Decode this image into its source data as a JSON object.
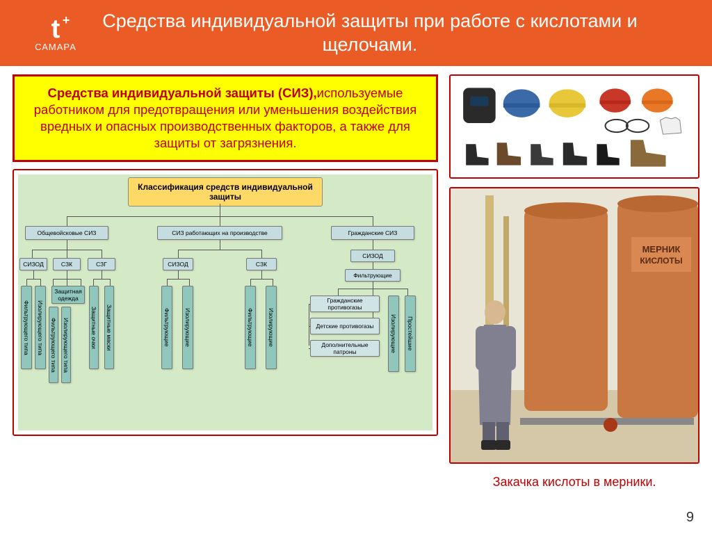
{
  "colors": {
    "header_bg": "#ea5b25",
    "siz_bg": "#ffff00",
    "siz_border": "#c00000",
    "siz_text": "#c00000",
    "chart_border": "#c00000",
    "chart_bg": "#d4e9c6",
    "chart_title_bg": "#ffd966",
    "node_bg": "#c5dde0",
    "node_accent": "#8fc7bd",
    "node_list": "#d0e4e6",
    "ppe_border": "#c00000",
    "photo_border": "#c00000",
    "caption_color": "#c00000",
    "photo_wall": "#e8e4d6",
    "photo_floor": "#d4c8a8",
    "tank_color": "#c87840",
    "tank_dark": "#a85820",
    "worker_apron": "#808090",
    "worker_sleeve": "#d8d0b0"
  },
  "logo": {
    "t": "t",
    "plus": "+",
    "sub": "САМАРА"
  },
  "title": "Средства индивидуальной защиты при работе с  кислотами и щелочами.",
  "siz_box": {
    "term": "Средства индивидуальной защиты (СИЗ),",
    "rest": "используемые работником для предотвращения или уменьшения воздействия вредных и опасных производственных факторов, а также для защиты от загрязнения."
  },
  "chart": {
    "title": "Классификация средств индивидуальной защиты",
    "level1": [
      "Общевойсковые СИЗ",
      "СИЗ работающих на производстве",
      "Гражданские СИЗ"
    ],
    "g1": {
      "sub": [
        "СИЗОД",
        "СЗК",
        "СЗГ"
      ],
      "leaf_a": [
        "Фильтрующего типа",
        "Изолирующего типа"
      ],
      "leaf_b": [
        "Фильтрующего типа",
        "Изолирующего типа",
        "Защитная одежда"
      ],
      "leaf_c": [
        "Защитные очки",
        "Защитные маски"
      ]
    },
    "g2": {
      "sub": [
        "СИЗОД",
        "СЗК"
      ],
      "leaf_a": [
        "Фильтрующие",
        "Изолирующие"
      ],
      "leaf_b": [
        "Фильтрующие",
        "Изолирующие"
      ]
    },
    "g3": {
      "sub": [
        "СИЗОД"
      ],
      "filt": "Фильтрующие",
      "items": [
        "Гражданские противогазы",
        "Детские противогазы",
        "Дополнительные патроны"
      ],
      "side": [
        "Изолирующие",
        "Простейшие"
      ]
    }
  },
  "caption": "Закачка кислоты в мерники.",
  "page": "9"
}
